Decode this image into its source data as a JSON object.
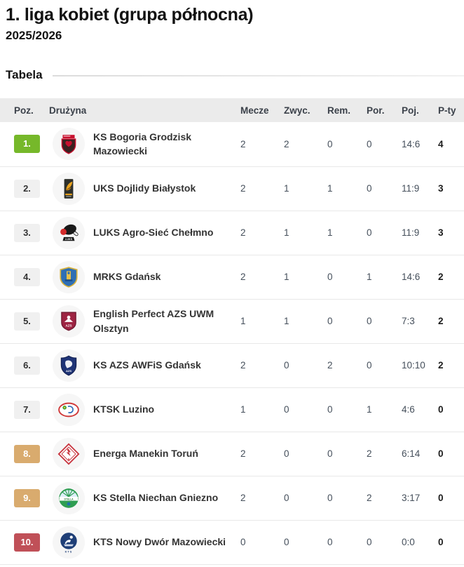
{
  "header": {
    "title": "1. liga kobiet (grupa północna)",
    "season": "2025/2026"
  },
  "section": {
    "title": "Tabela"
  },
  "badge_colors": {
    "promotion": {
      "bg": "#76b82a",
      "fg": "#ffffff"
    },
    "neutral": {
      "bg": "#f0f0f0",
      "fg": "#333333"
    },
    "danger": {
      "bg": "#d9ab6e",
      "fg": "#ffffff"
    },
    "relegation": {
      "bg": "#c05058",
      "fg": "#ffffff"
    }
  },
  "table": {
    "columns": [
      "Poz.",
      "Drużyna",
      "Mecze",
      "Zwyc.",
      "Rem.",
      "Por.",
      "Poj.",
      "P-ty"
    ],
    "rows": [
      {
        "pos": "1.",
        "type": "promotion",
        "logo": "bogoria",
        "team": "KS Bogoria Grodzisk Mazowiecki",
        "stats": [
          "2",
          "2",
          "0",
          "0",
          "14:6",
          "4"
        ]
      },
      {
        "pos": "2.",
        "type": "neutral",
        "logo": "dojlidy",
        "team": "UKS Dojlidy Białystok",
        "stats": [
          "2",
          "1",
          "1",
          "0",
          "11:9",
          "3"
        ]
      },
      {
        "pos": "3.",
        "type": "neutral",
        "logo": "luks",
        "team": "LUKS Agro-Sieć Chełmno",
        "stats": [
          "2",
          "1",
          "1",
          "0",
          "11:9",
          "3"
        ]
      },
      {
        "pos": "4.",
        "type": "neutral",
        "logo": "mrks",
        "team": "MRKS Gdańsk",
        "stats": [
          "2",
          "1",
          "0",
          "1",
          "14:6",
          "2"
        ]
      },
      {
        "pos": "5.",
        "type": "neutral",
        "logo": "azsuwm",
        "team": "English Perfect AZS UWM Olsztyn",
        "stats": [
          "1",
          "1",
          "0",
          "0",
          "7:3",
          "2"
        ]
      },
      {
        "pos": "6.",
        "type": "neutral",
        "logo": "awfis",
        "team": "KS AZS AWFiS Gdańsk",
        "stats": [
          "2",
          "0",
          "2",
          "0",
          "10:10",
          "2"
        ]
      },
      {
        "pos": "7.",
        "type": "neutral",
        "logo": "ktsk",
        "team": "KTSK Luzino",
        "stats": [
          "1",
          "0",
          "0",
          "1",
          "4:6",
          "0"
        ]
      },
      {
        "pos": "8.",
        "type": "danger",
        "logo": "manekin",
        "team": "Energa Manekin Toruń",
        "stats": [
          "2",
          "0",
          "0",
          "2",
          "6:14",
          "0"
        ]
      },
      {
        "pos": "9.",
        "type": "danger",
        "logo": "stella",
        "team": "KS Stella Niechan Gniezno",
        "stats": [
          "2",
          "0",
          "0",
          "2",
          "3:17",
          "0"
        ]
      },
      {
        "pos": "10.",
        "type": "relegation",
        "logo": "kts",
        "team": "KTS Nowy Dwór Mazowiecki",
        "stats": [
          "0",
          "0",
          "0",
          "0",
          "0:0",
          "0"
        ]
      }
    ]
  }
}
